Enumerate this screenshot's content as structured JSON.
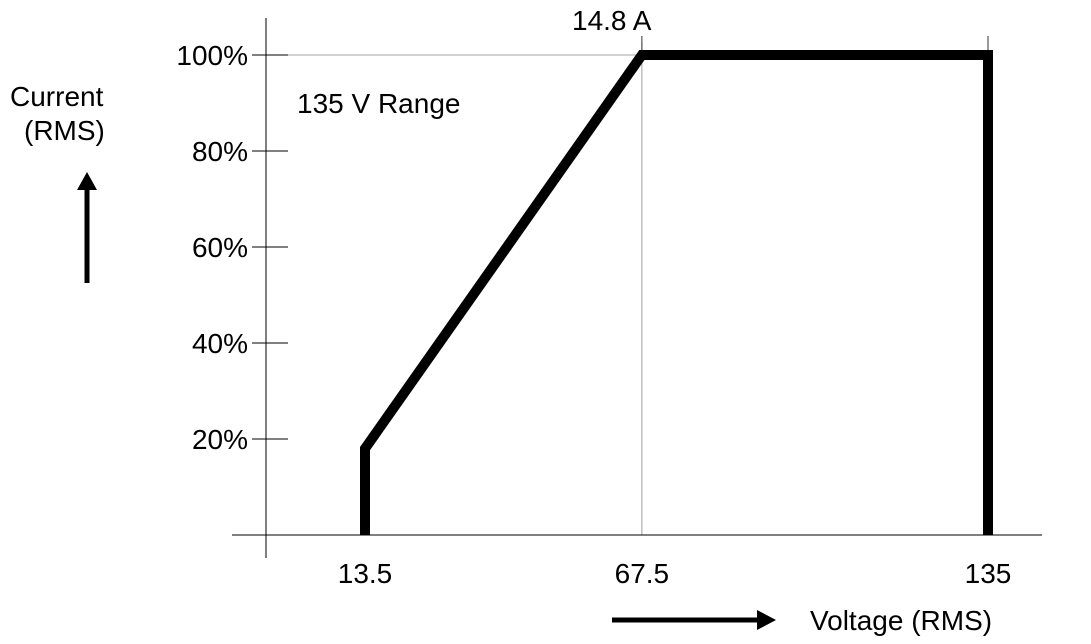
{
  "chart_data": {
    "type": "line",
    "annotation_top": "14.8 A",
    "range_label": "135 V Range",
    "ylabel": [
      "Current",
      "(RMS)"
    ],
    "xlabel": "Voltage (RMS)",
    "y_ticks": [
      {
        "value": 20,
        "label": "20%"
      },
      {
        "value": 40,
        "label": "40%"
      },
      {
        "value": 60,
        "label": "60%"
      },
      {
        "value": 80,
        "label": "80%"
      },
      {
        "value": 100,
        "label": "100%"
      }
    ],
    "x_ticks": [
      {
        "value": 13.5,
        "label": "13.5"
      },
      {
        "value": 67.5,
        "label": "67.5"
      },
      {
        "value": 135,
        "label": "135"
      }
    ],
    "series": [
      {
        "points": [
          {
            "x": 13.5,
            "y": 0
          },
          {
            "x": 13.5,
            "y": 18
          },
          {
            "x": 67.5,
            "y": 100
          },
          {
            "x": 135,
            "y": 100
          },
          {
            "x": 135,
            "y": 0
          }
        ]
      }
    ],
    "reference_lines": [
      {
        "axis": "x",
        "value": 67.5
      },
      {
        "axis": "y",
        "value": 100
      }
    ],
    "colors": {
      "line": "#000000",
      "axis": "#000000",
      "guide": "#888888"
    }
  }
}
